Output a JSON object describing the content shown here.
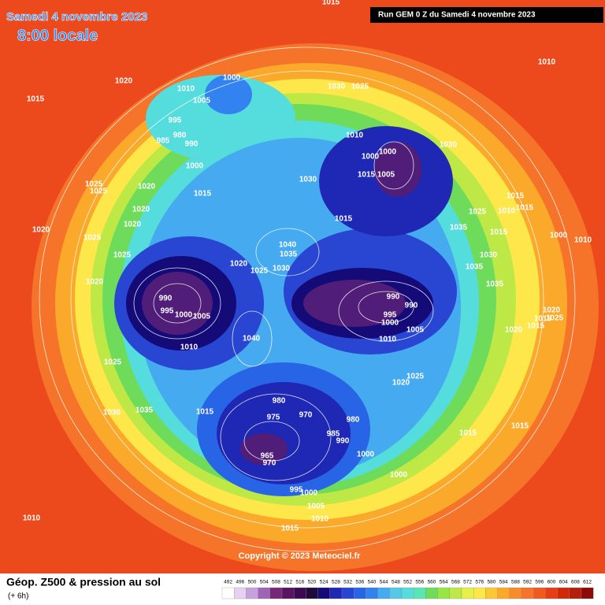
{
  "header": {
    "date": "Samedi 4 novembre 2023",
    "time": "8:00 locale",
    "run": "Run GEM 0 Z du Samedi 4 novembre 2023"
  },
  "copyright": "Copyright © 2023 Meteociel.fr",
  "footer": {
    "title": "Géop. Z500 & pression au sol",
    "lead": "(+ 6h)"
  },
  "scale": {
    "ticks": [
      492,
      496,
      500,
      504,
      508,
      512,
      516,
      520,
      524,
      528,
      532,
      536,
      540,
      544,
      548,
      552,
      556,
      560,
      564,
      568,
      572,
      576,
      580,
      584,
      588,
      592,
      596,
      600,
      604,
      608,
      612
    ],
    "colors": [
      "#ffffff",
      "#e6d2f0",
      "#c8a0dc",
      "#a064b4",
      "#782878",
      "#5a1464",
      "#3c0a50",
      "#1e0a3c",
      "#140a78",
      "#1e28b4",
      "#2846d2",
      "#2864e6",
      "#3282f0",
      "#46aaf0",
      "#55c8e6",
      "#55dcdc",
      "#5ae6b4",
      "#6edc5a",
      "#96e646",
      "#bee846",
      "#e6f046",
      "#fde74a",
      "#fcc832",
      "#fba92a",
      "#f88c28",
      "#f5742a",
      "#f05a1e",
      "#e83c14",
      "#d2280a",
      "#b41e0a",
      "#8c0a0a"
    ]
  },
  "pressure_labels": [
    1015,
    1010,
    1020,
    1015,
    1000,
    1010,
    1005,
    1030,
    1025,
    995,
    985,
    980,
    990,
    1010,
    1000,
    1000,
    1030,
    1015,
    1005,
    1000,
    1025,
    1025,
    1020,
    1015,
    1030,
    1015,
    1010,
    1015,
    1020,
    1025,
    1015,
    1020,
    1035,
    1015,
    1020,
    1000,
    1010,
    1025,
    1040,
    1035,
    1030,
    1025,
    1020,
    1030,
    1025,
    1035,
    1020,
    1035,
    990,
    990,
    990,
    995,
    1000,
    1005,
    995,
    1000,
    1005,
    1010,
    1020,
    1015,
    1025,
    1020,
    1015,
    1040,
    1010,
    1025,
    1025,
    1020,
    1030,
    1035,
    1015,
    980,
    975,
    970,
    980,
    1015,
    1015,
    985,
    990,
    965,
    970,
    1000,
    1000,
    995,
    1000,
    1005,
    1010,
    1010,
    1015
  ]
}
